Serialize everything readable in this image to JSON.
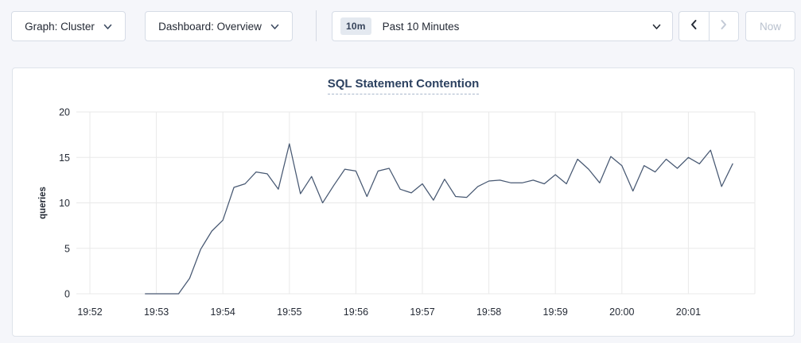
{
  "toolbar": {
    "graph_dropdown_label": "Graph: Cluster",
    "dashboard_dropdown_label": "Dashboard: Overview",
    "time_badge": "10m",
    "time_label": "Past 10 Minutes",
    "now_label": "Now",
    "icons": {
      "dropdown": "chevron-down-icon",
      "prev": "chevron-left-icon",
      "next": "chevron-right-icon"
    },
    "prev_enabled": true,
    "next_enabled": false,
    "now_enabled": false
  },
  "colors": {
    "line": "#475872",
    "grid": "#e9e9e9",
    "axis_text": "#242a35",
    "title_text": "#2c4160",
    "page_bg": "#f5f6fa",
    "panel_border": "#dee3ea",
    "disabled_text": "#b9c1ce"
  },
  "chart_data": {
    "type": "line",
    "title": "SQL Statement Contention",
    "ylabel": "queries",
    "ylim": [
      0,
      20
    ],
    "y_ticks": [
      0,
      5,
      10,
      15,
      20
    ],
    "x_ticks": [
      "19:52",
      "19:53",
      "19:54",
      "19:55",
      "19:56",
      "19:57",
      "19:58",
      "19:59",
      "20:00",
      "20:01"
    ],
    "x_axis_span_seconds": 600,
    "grid": true,
    "legend": false,
    "series_name": "queries",
    "points": [
      [
        "19:52:50",
        0
      ],
      [
        "19:53:00",
        0
      ],
      [
        "19:53:10",
        0
      ],
      [
        "19:53:20",
        0
      ],
      [
        "19:53:30",
        1.7
      ],
      [
        "19:53:40",
        4.9
      ],
      [
        "19:53:50",
        6.9
      ],
      [
        "19:54:00",
        8.1
      ],
      [
        "19:54:10",
        11.7
      ],
      [
        "19:54:20",
        12.1
      ],
      [
        "19:54:30",
        13.4
      ],
      [
        "19:54:40",
        13.2
      ],
      [
        "19:54:50",
        11.5
      ],
      [
        "19:55:00",
        16.5
      ],
      [
        "19:55:10",
        11.0
      ],
      [
        "19:55:20",
        12.9
      ],
      [
        "19:55:30",
        10.0
      ],
      [
        "19:55:40",
        11.9
      ],
      [
        "19:55:50",
        13.7
      ],
      [
        "19:56:00",
        13.5
      ],
      [
        "19:56:10",
        10.7
      ],
      [
        "19:56:20",
        13.5
      ],
      [
        "19:56:30",
        13.8
      ],
      [
        "19:56:40",
        11.5
      ],
      [
        "19:56:50",
        11.1
      ],
      [
        "19:57:00",
        12.1
      ],
      [
        "19:57:10",
        10.3
      ],
      [
        "19:57:20",
        12.6
      ],
      [
        "19:57:30",
        10.7
      ],
      [
        "19:57:40",
        10.6
      ],
      [
        "19:57:50",
        11.8
      ],
      [
        "19:58:00",
        12.4
      ],
      [
        "19:58:10",
        12.5
      ],
      [
        "19:58:20",
        12.2
      ],
      [
        "19:58:30",
        12.2
      ],
      [
        "19:58:40",
        12.5
      ],
      [
        "19:58:50",
        12.1
      ],
      [
        "19:59:00",
        13.1
      ],
      [
        "19:59:10",
        12.1
      ],
      [
        "19:59:20",
        14.8
      ],
      [
        "19:59:30",
        13.7
      ],
      [
        "19:59:40",
        12.2
      ],
      [
        "19:59:50",
        15.1
      ],
      [
        "20:00:00",
        14.1
      ],
      [
        "20:00:10",
        11.3
      ],
      [
        "20:00:20",
        14.1
      ],
      [
        "20:00:30",
        13.4
      ],
      [
        "20:00:40",
        14.8
      ],
      [
        "20:00:50",
        13.8
      ],
      [
        "20:01:00",
        15.0
      ],
      [
        "20:01:10",
        14.3
      ],
      [
        "20:01:20",
        15.8
      ],
      [
        "20:01:30",
        11.8
      ],
      [
        "20:01:40",
        14.3
      ]
    ]
  }
}
